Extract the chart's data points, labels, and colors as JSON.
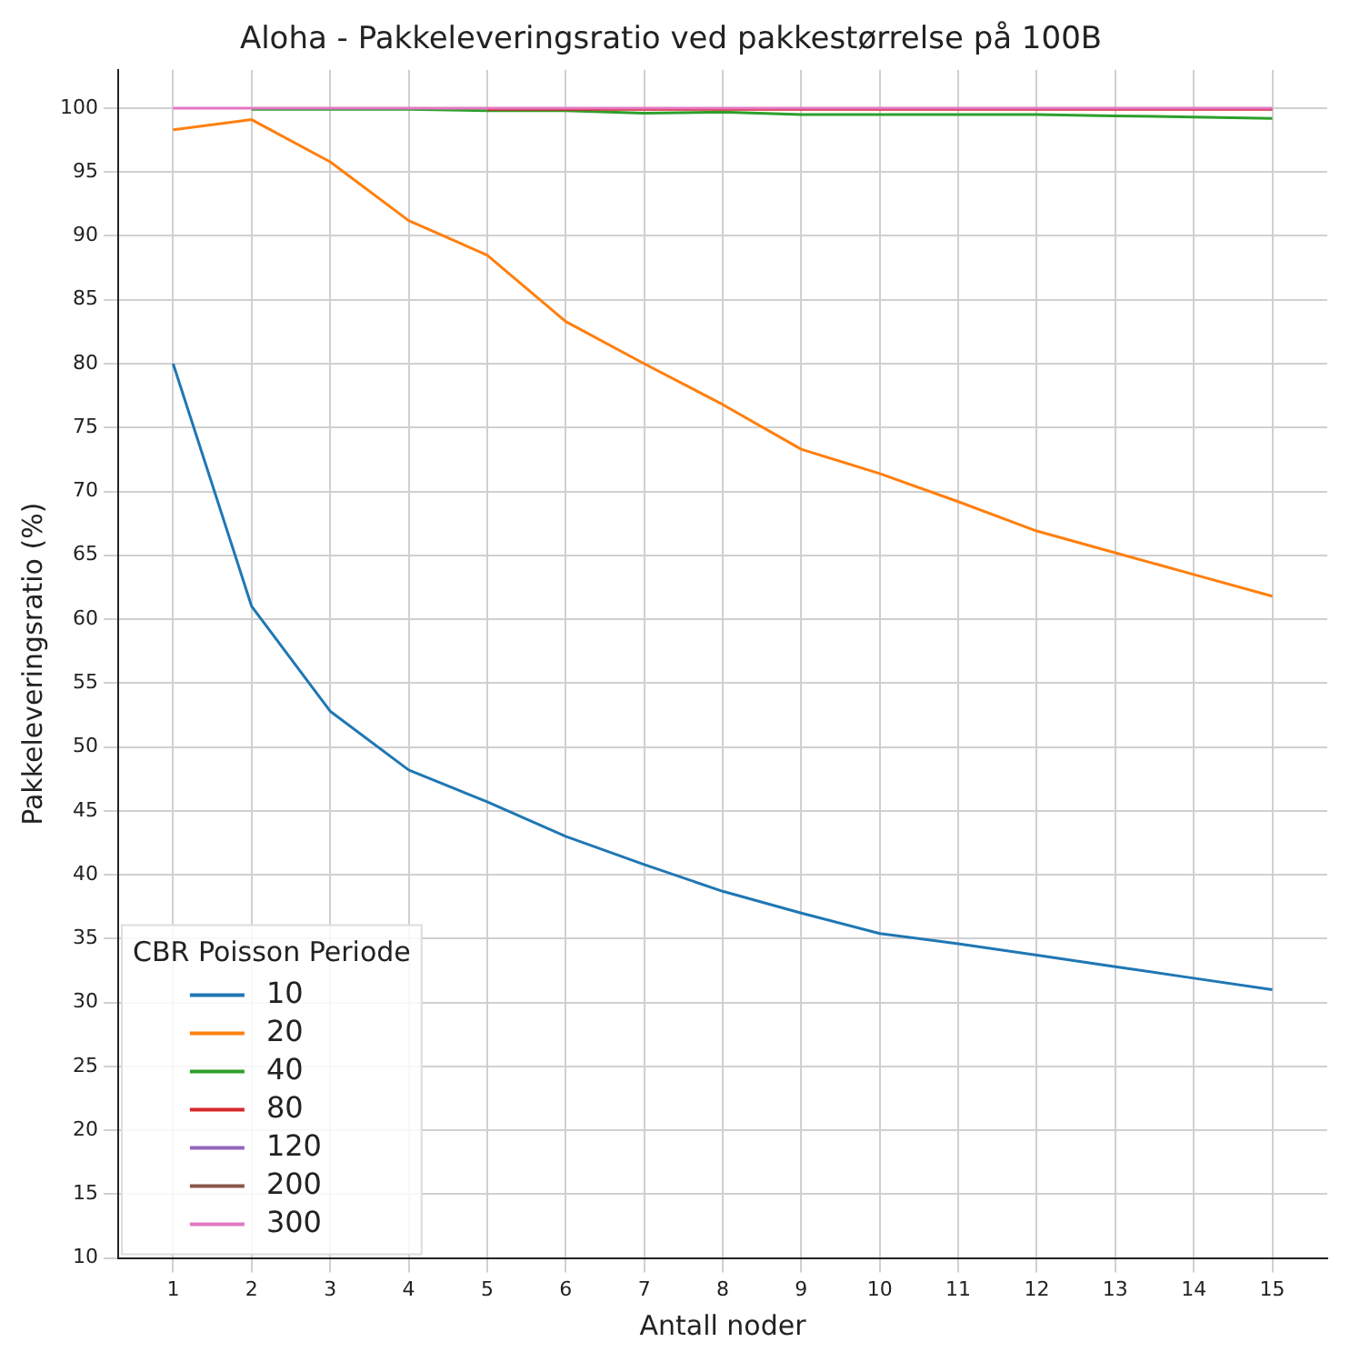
{
  "chart_data": {
    "type": "line",
    "title": "Aloha - Pakkeleveringsratio ved pakkestørrelse på 100B",
    "xlabel": "Antall noder",
    "ylabel": "Pakkeleveringsratio (%)",
    "legend_title": "CBR Poisson Periode",
    "x": [
      1,
      2,
      3,
      4,
      5,
      6,
      7,
      8,
      9,
      10,
      11,
      12,
      13,
      14,
      15
    ],
    "xlim": [
      0.3,
      15.7
    ],
    "xticks": [
      1,
      2,
      3,
      4,
      5,
      6,
      7,
      8,
      9,
      10,
      11,
      12,
      13,
      14,
      15
    ],
    "ylim": [
      10,
      103
    ],
    "yticks": [
      10,
      15,
      20,
      25,
      30,
      35,
      40,
      45,
      50,
      55,
      60,
      65,
      70,
      75,
      80,
      85,
      90,
      95,
      100
    ],
    "grid": true,
    "legend": "bottom left",
    "line_style": "solid",
    "marker": "none",
    "series": [
      {
        "name": "10",
        "color": "#1f77b4",
        "values": [
          80,
          61,
          52.8,
          48.2,
          45.7,
          43,
          40.8,
          38.7,
          37,
          35.4,
          34.6,
          33.7,
          32.8,
          31.9,
          31
        ]
      },
      {
        "name": "20",
        "color": "#ff7f0e",
        "values": [
          98.3,
          99.1,
          95.8,
          91.2,
          88.5,
          83.3,
          80,
          76.8,
          73.3,
          71.4,
          69.2,
          66.9,
          65.2,
          63.5,
          61.8
        ]
      },
      {
        "name": "40",
        "color": "#2ca02c",
        "values": [
          null,
          99.9,
          99.9,
          99.9,
          99.8,
          99.8,
          99.6,
          99.7,
          99.5,
          99.5,
          99.5,
          99.5,
          99.4,
          99.3,
          99.2
        ]
      },
      {
        "name": "80",
        "color": "#d62728",
        "values": [
          null,
          null,
          null,
          null,
          99.9,
          99.9,
          99.9,
          99.9,
          99.9,
          99.9,
          99.9,
          99.9,
          99.9,
          99.9,
          99.9
        ]
      },
      {
        "name": "120",
        "color": "#9467bd",
        "values": [
          null,
          null,
          null,
          null,
          null,
          null,
          null,
          null,
          null,
          null,
          null,
          null,
          null,
          null,
          null
        ]
      },
      {
        "name": "200",
        "color": "#8c564b",
        "values": [
          null,
          null,
          null,
          null,
          null,
          null,
          null,
          null,
          null,
          null,
          null,
          null,
          null,
          null,
          null
        ]
      },
      {
        "name": "300",
        "color": "#e377c2",
        "values": [
          100,
          100,
          100,
          100,
          100,
          100,
          100,
          100,
          100,
          100,
          100,
          100,
          100,
          100,
          100
        ]
      }
    ]
  }
}
